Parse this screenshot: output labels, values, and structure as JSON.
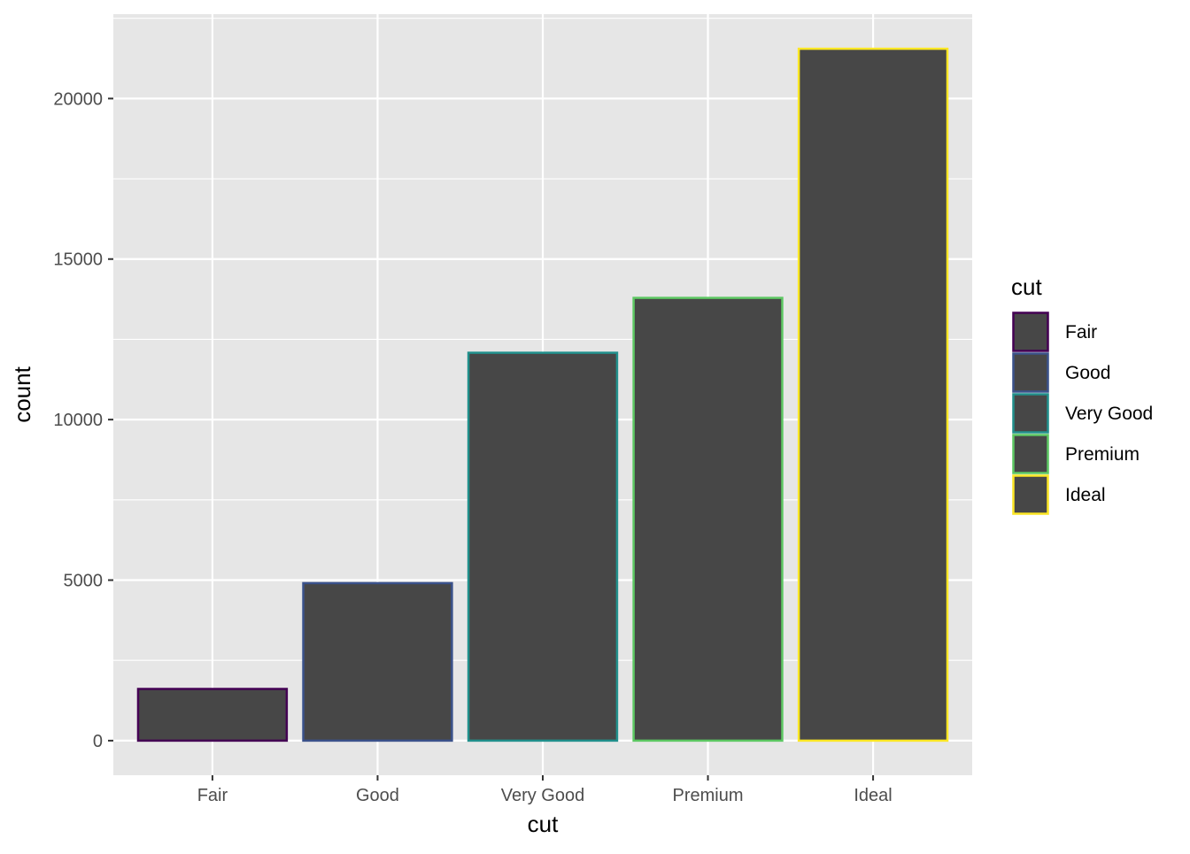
{
  "chart_data": {
    "type": "bar",
    "title": "",
    "xlabel": "cut",
    "ylabel": "count",
    "categories": [
      "Fair",
      "Good",
      "Very Good",
      "Premium",
      "Ideal"
    ],
    "values": [
      1610,
      4906,
      12082,
      13791,
      21551
    ],
    "ylim": [
      -1077.55,
      22628.55
    ],
    "yticks": [
      0,
      5000,
      10000,
      15000,
      20000
    ],
    "ytick_labels": [
      "0",
      "5000",
      "10000",
      "15000",
      "20000"
    ],
    "grid": true,
    "bar_fill": "#474747",
    "outline_colors": [
      "#440154",
      "#3B528B",
      "#21908C",
      "#5DC863",
      "#FDE725"
    ],
    "panel_background": "#E6E6E6",
    "grid_color": "#FFFFFF",
    "legend": {
      "title": "cut",
      "placement": "right",
      "entries": [
        "Fair",
        "Good",
        "Very Good",
        "Premium",
        "Ideal"
      ]
    }
  }
}
